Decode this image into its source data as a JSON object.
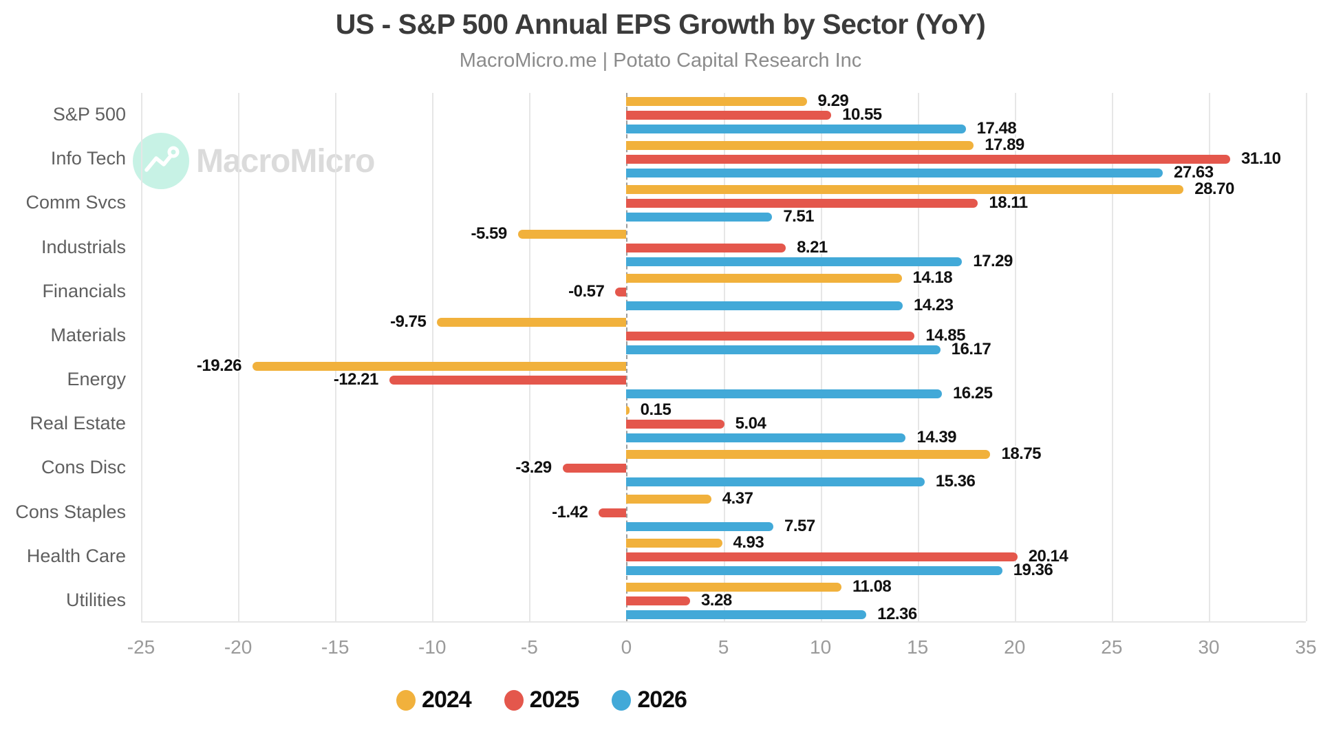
{
  "watermark": {
    "brand": "MacroMicro",
    "icon": "macromicro-logo",
    "circle_color": "#c7f2e5",
    "text_color": "#dbdbdb"
  },
  "chart_data": {
    "type": "bar",
    "orientation": "horizontal",
    "title": "US - S&P 500 Annual EPS Growth by Sector (YoY)",
    "subtitle": "MacroMicro.me | Potato Capital Research Inc",
    "categories": [
      "S&P 500",
      "Info Tech",
      "Comm Svcs",
      "Industrials",
      "Financials",
      "Materials",
      "Energy",
      "Real Estate",
      "Cons Disc",
      "Cons Staples",
      "Health Care",
      "Utilities"
    ],
    "series": [
      {
        "name": "2024",
        "color": "#f1b13c",
        "values": [
          9.29,
          17.89,
          28.7,
          -5.59,
          14.18,
          -9.75,
          -19.26,
          0.15,
          18.75,
          4.37,
          4.93,
          11.08
        ]
      },
      {
        "name": "2025",
        "color": "#e4574c",
        "values": [
          10.55,
          31.1,
          18.11,
          8.21,
          -0.57,
          14.85,
          -12.21,
          5.04,
          -3.29,
          -1.42,
          20.14,
          3.28
        ]
      },
      {
        "name": "2026",
        "color": "#42a9d8",
        "values": [
          17.48,
          27.63,
          7.51,
          17.29,
          14.23,
          16.17,
          16.25,
          14.39,
          15.36,
          7.57,
          19.36,
          12.36
        ]
      }
    ],
    "value_label_format": "0.00",
    "xlim": [
      -25,
      35
    ],
    "xticks": [
      -25,
      -20,
      -15,
      -10,
      -5,
      0,
      5,
      10,
      15,
      20,
      25,
      30,
      35
    ],
    "grid": true,
    "zero_line": "dashed",
    "legend_position": "bottom",
    "colors": {
      "grid": "#e6e6e6",
      "zero_line": "#9c9c9c",
      "tick_label": "#9a9a9a",
      "category_label": "#5f5f5f",
      "value_label": "#111111",
      "title": "#3b3b3b",
      "subtitle": "#8b8b8b"
    }
  }
}
